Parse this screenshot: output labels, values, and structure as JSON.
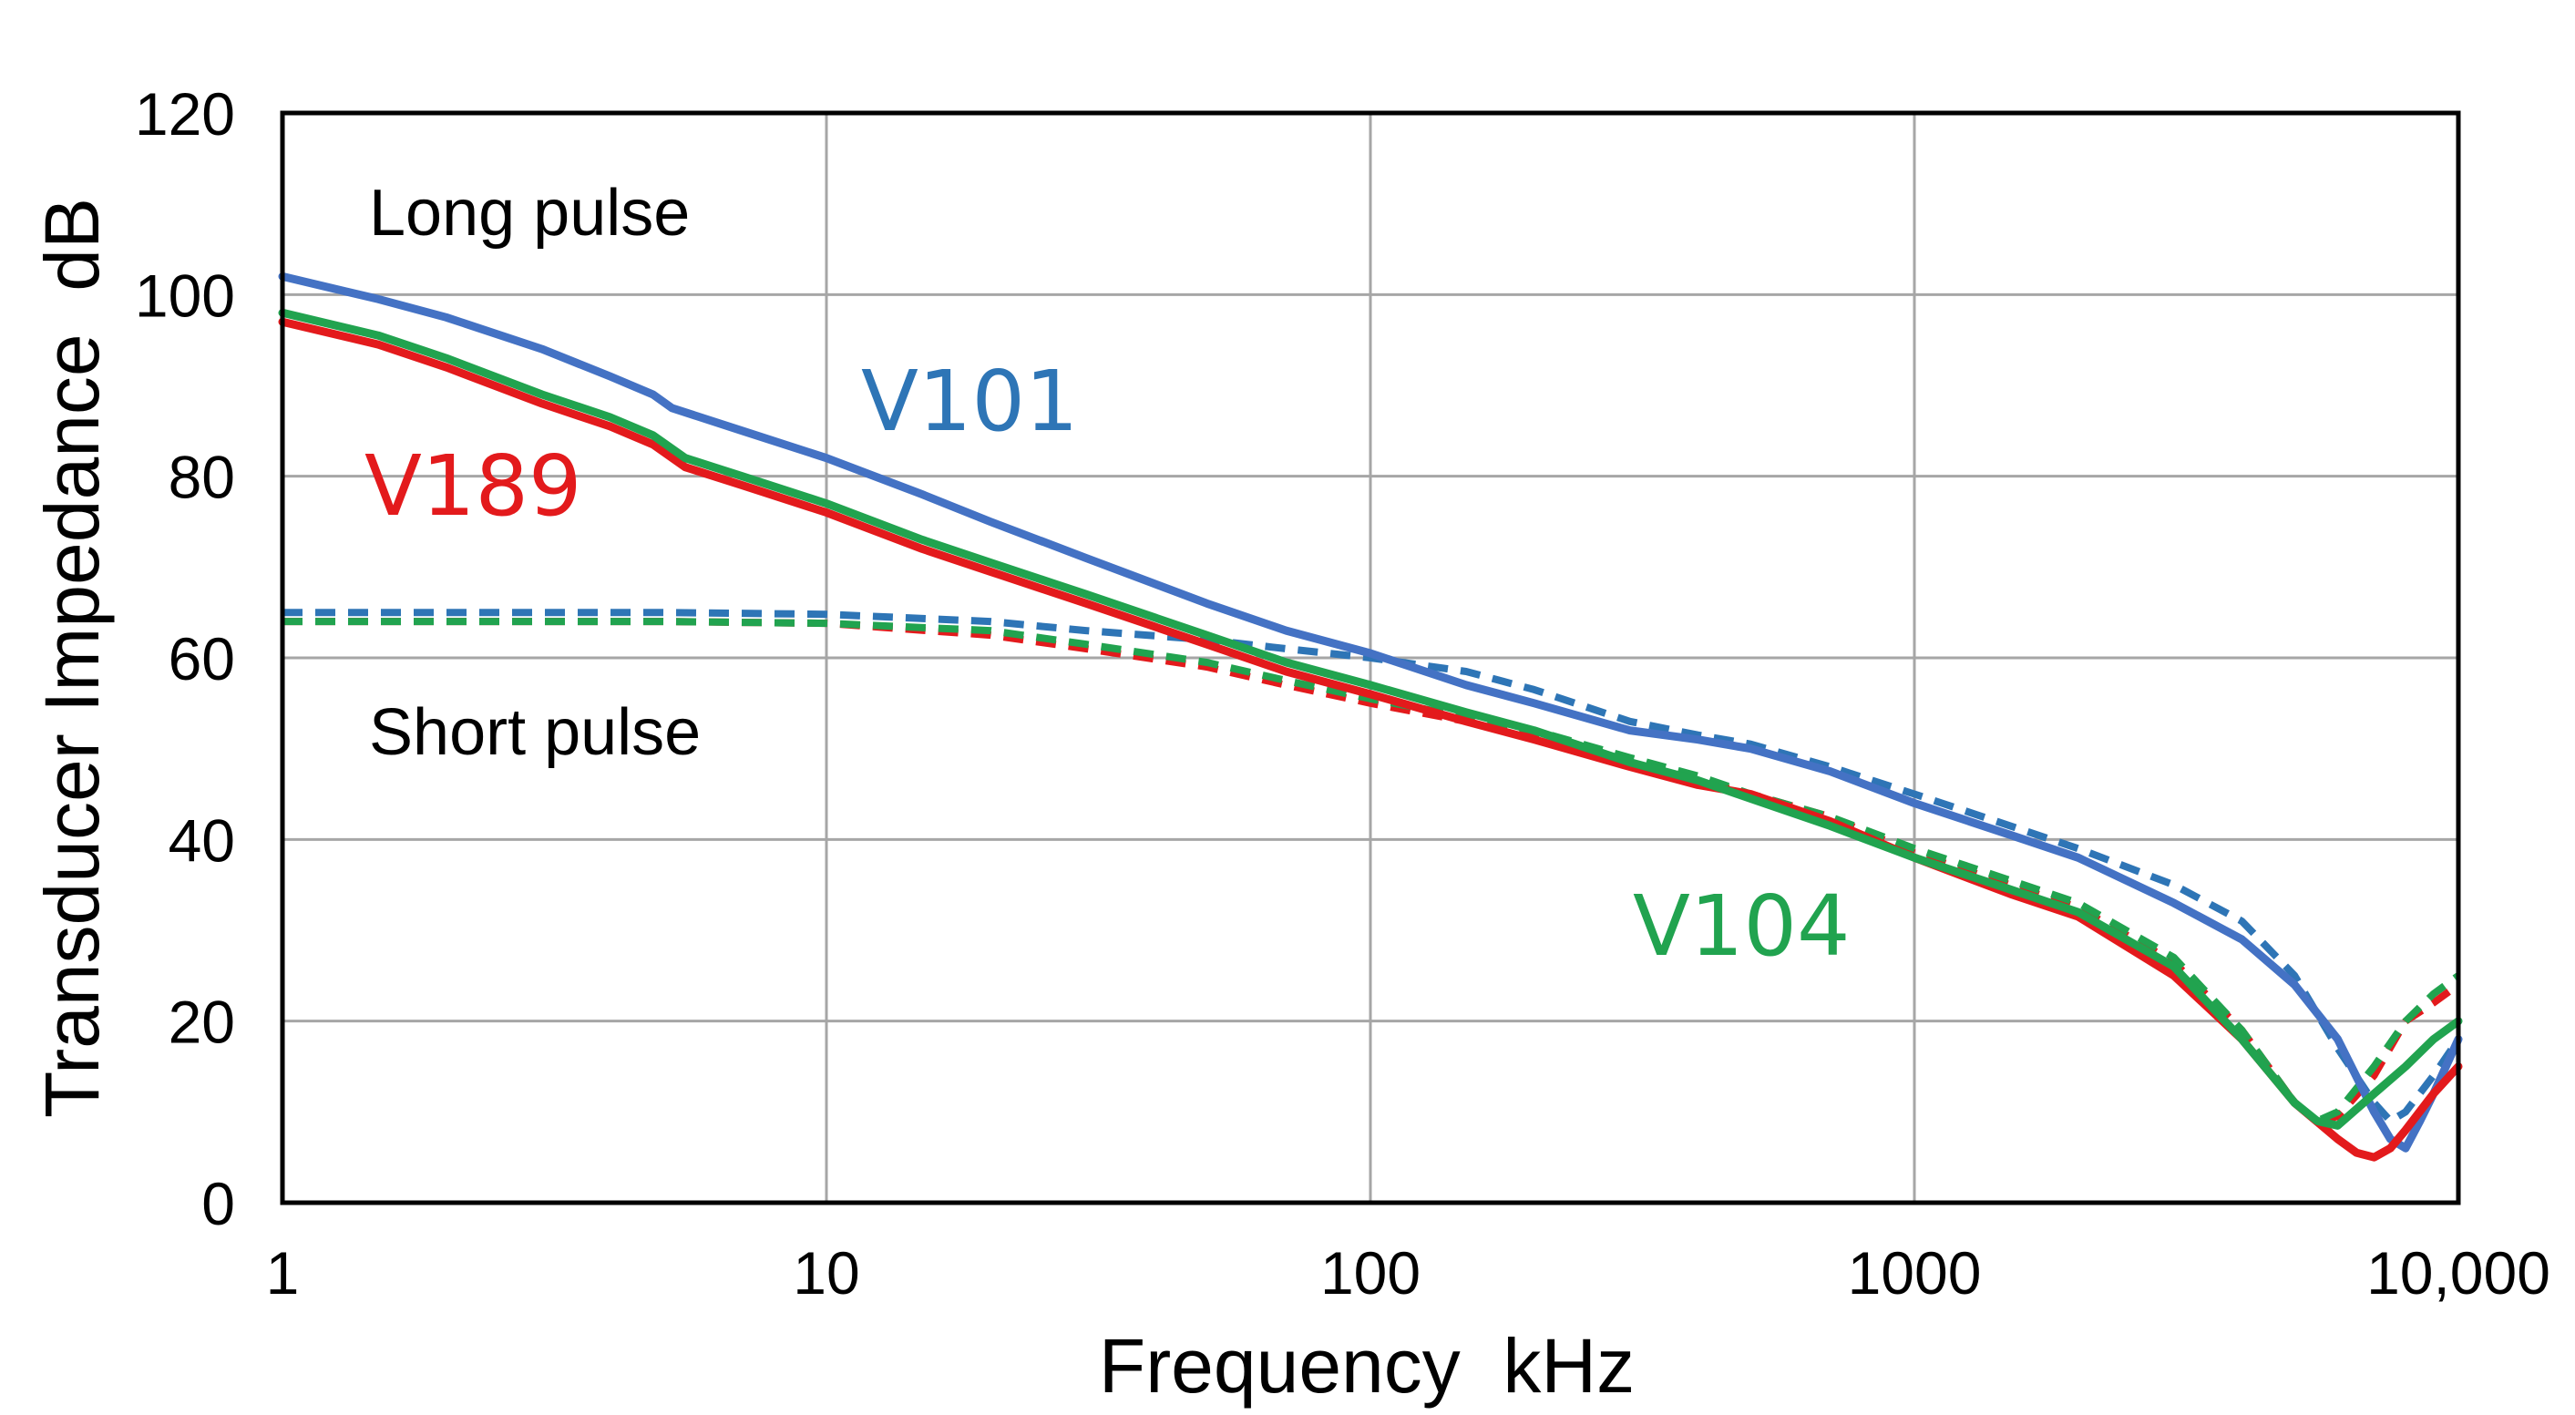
{
  "chart_data": {
    "type": "line",
    "x_scale": "log",
    "xlabel": "Frequency  kHz",
    "ylabel": "Transducer Impedance  dB",
    "xlim": [
      1,
      10000
    ],
    "ylim": [
      0,
      120
    ],
    "grid": true,
    "x_ticks": [
      1,
      10,
      100,
      1000,
      10000
    ],
    "x_tick_labels": [
      "1",
      "10",
      "100",
      "1000",
      "10,000"
    ],
    "y_ticks": [
      0,
      20,
      40,
      60,
      80,
      100,
      120
    ],
    "y_tick_labels": [
      "0",
      "20",
      "40",
      "60",
      "80",
      "100",
      "120"
    ],
    "annotations": {
      "long_pulse": "Long pulse",
      "short_pulse": "Short pulse"
    },
    "series_labels": {
      "v101": "V101",
      "v189": "V189",
      "v104": "V104"
    },
    "colors": {
      "v101_label": "#2e75b6",
      "v189_label": "#e31a1c",
      "v104_label": "#21a34f"
    },
    "series": [
      {
        "name": "V101 long pulse",
        "label_key": "v101",
        "style": "solid",
        "color": "#4472c4",
        "x": [
          1,
          1.5,
          2,
          3,
          4,
          4.8,
          5.2,
          7,
          10,
          15,
          20,
          30,
          50,
          70,
          100,
          150,
          200,
          300,
          400,
          500,
          700,
          1000,
          1500,
          2000,
          3000,
          4000,
          5000,
          6000,
          7000,
          7500,
          8000,
          8500,
          9000,
          10000
        ],
        "values": [
          102,
          99.5,
          97.5,
          94,
          91,
          89,
          87.5,
          85,
          82,
          78,
          75,
          71,
          66,
          63,
          60.5,
          57,
          55,
          52,
          51,
          50,
          47.5,
          44,
          40.5,
          38,
          33,
          29,
          24,
          18,
          10,
          7,
          6,
          9,
          12,
          18
        ]
      },
      {
        "name": "V189 long pulse",
        "label_key": "v189",
        "style": "solid",
        "color": "#e31a1c",
        "x": [
          1,
          1.5,
          2,
          3,
          4,
          4.8,
          5.5,
          7,
          10,
          15,
          20,
          30,
          50,
          70,
          100,
          150,
          200,
          300,
          400,
          500,
          700,
          1000,
          1500,
          2000,
          3000,
          4000,
          5000,
          6000,
          6500,
          7000,
          7500,
          8000,
          9000,
          10000
        ],
        "values": [
          97,
          94.5,
          92,
          88,
          85.5,
          83.5,
          81,
          79,
          76,
          72,
          69.5,
          66,
          61.5,
          58.5,
          56,
          53,
          51,
          48,
          46,
          45,
          42,
          38,
          34,
          31.5,
          25,
          18,
          11,
          7,
          5.5,
          5,
          6,
          8,
          12,
          15
        ]
      },
      {
        "name": "V104 long pulse",
        "label_key": "v104",
        "style": "solid",
        "color": "#21a34f",
        "x": [
          1,
          1.5,
          2,
          3,
          4,
          4.8,
          5.5,
          7,
          10,
          15,
          20,
          30,
          50,
          70,
          100,
          150,
          200,
          300,
          400,
          500,
          700,
          1000,
          1500,
          2000,
          3000,
          4000,
          5000,
          5500,
          6000,
          7000,
          8000,
          9000,
          10000
        ],
        "values": [
          98,
          95.5,
          93,
          89,
          86.5,
          84.5,
          82,
          80,
          77,
          73,
          70.5,
          67,
          62.5,
          59.5,
          57,
          54,
          52,
          48.5,
          46.5,
          44.5,
          41.5,
          38,
          34.5,
          32,
          26,
          18,
          11,
          9,
          8.5,
          12,
          15,
          18,
          20
        ]
      },
      {
        "name": "V101 short pulse",
        "label_key": "v101",
        "style": "dashed",
        "color": "#2e75b6",
        "x": [
          1,
          2,
          5,
          10,
          20,
          30,
          50,
          70,
          100,
          150,
          200,
          300,
          400,
          500,
          700,
          1000,
          1500,
          2000,
          3000,
          4000,
          5000,
          6000,
          7000,
          7500,
          8000,
          9000,
          10000
        ],
        "values": [
          65,
          65,
          65,
          64.8,
          64,
          63,
          62,
          61,
          60,
          58.5,
          56.5,
          53,
          51.5,
          50.5,
          48,
          45,
          41.5,
          39,
          35,
          31,
          25,
          17,
          11,
          9,
          10,
          14,
          18
        ]
      },
      {
        "name": "V189 short pulse",
        "label_key": "v189",
        "style": "dashed",
        "color": "#e31a1c",
        "x": [
          1,
          2,
          5,
          10,
          20,
          30,
          50,
          70,
          100,
          150,
          200,
          300,
          400,
          500,
          700,
          1000,
          1500,
          2000,
          3000,
          4000,
          5000,
          5500,
          6000,
          7000,
          8000,
          9000,
          10000
        ],
        "values": [
          64,
          64,
          64,
          63.8,
          62.5,
          61,
          59,
          57,
          55,
          53,
          51.5,
          48.5,
          46.5,
          45,
          42.5,
          38.5,
          35,
          32.5,
          26.5,
          19,
          11,
          9,
          9.5,
          14,
          20,
          22,
          24
        ]
      },
      {
        "name": "V104 short pulse",
        "label_key": "v104",
        "style": "dashed",
        "color": "#21a34f",
        "x": [
          1,
          2,
          5,
          10,
          20,
          30,
          50,
          70,
          100,
          150,
          200,
          300,
          400,
          500,
          700,
          1000,
          1500,
          2000,
          3000,
          4000,
          5000,
          5500,
          6000,
          7000,
          8000,
          9000,
          10000
        ],
        "values": [
          64,
          64,
          64,
          63.8,
          63,
          61.5,
          59.5,
          57.5,
          55.5,
          53.5,
          52,
          49,
          47,
          45,
          42.5,
          39,
          35.5,
          33,
          27,
          19,
          11,
          9,
          10,
          15,
          20,
          23,
          25
        ]
      }
    ]
  }
}
